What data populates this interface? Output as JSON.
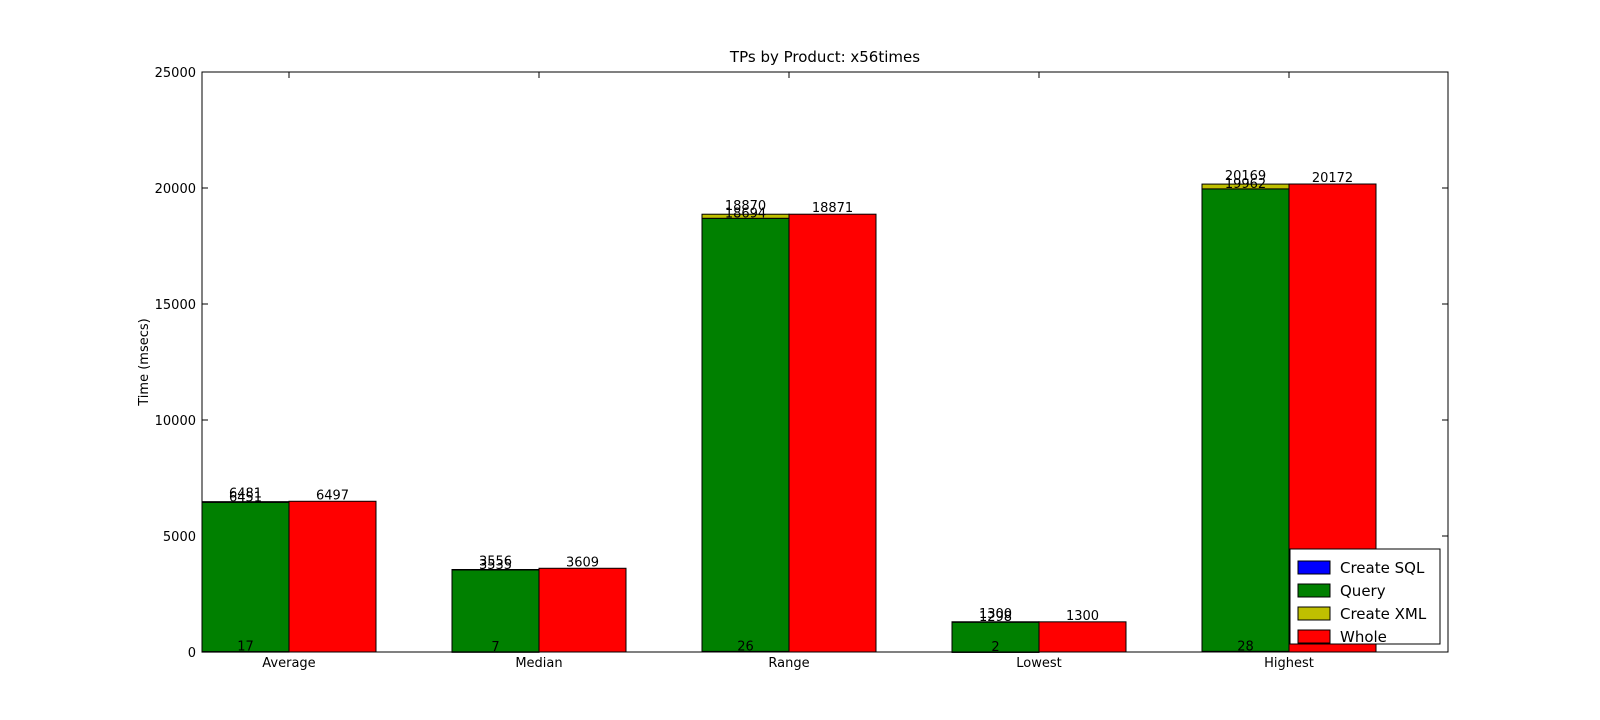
{
  "chart_data": {
    "type": "bar",
    "title": "TPs by Product: x56times",
    "xlabel": "",
    "ylabel": "Time (msecs)",
    "ylim": [
      0,
      25000
    ],
    "yticks": [
      0,
      5000,
      10000,
      15000,
      20000,
      25000
    ],
    "categories": [
      "Average",
      "Median",
      "Range",
      "Lowest",
      "Highest"
    ],
    "stacked_series": [
      {
        "name": "Create SQL",
        "color": "#0000ff",
        "values": [
          17,
          7,
          26,
          2,
          28
        ]
      },
      {
        "name": "Query",
        "color": "#008000",
        "values": [
          6434,
          3528,
          18668,
          1296,
          19934
        ]
      },
      {
        "name": "Create XML",
        "color": "#bfbf00",
        "values": [
          30,
          21,
          176,
          2,
          207
        ]
      }
    ],
    "stacked_labels": {
      "create_sql": [
        "17",
        "7",
        "26",
        "2",
        "28"
      ],
      "query": [
        "6451",
        "3535",
        "18694",
        "1298",
        "19962"
      ],
      "create_xml": [
        "6481",
        "3556",
        "18870",
        "1300",
        "20169"
      ]
    },
    "whole_series": {
      "name": "Whole",
      "color": "#ff0000",
      "values": [
        6497,
        3609,
        18871,
        1300,
        20172
      ]
    },
    "whole_labels": [
      "6497",
      "3609",
      "18871",
      "1300",
      "20172"
    ],
    "legend": {
      "position": "lower-right",
      "entries": [
        {
          "name": "Create SQL",
          "color": "#0000ff"
        },
        {
          "name": "Query",
          "color": "#008000"
        },
        {
          "name": "Create XML",
          "color": "#bfbf00"
        },
        {
          "name": "Whole",
          "color": "#ff0000"
        }
      ]
    },
    "grid": false
  }
}
